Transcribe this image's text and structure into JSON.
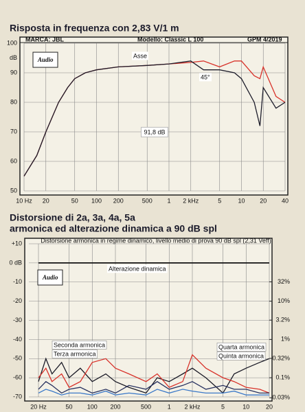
{
  "chart_data": [
    {
      "type": "line",
      "title": "Risposta in frequenza con 2,83 V/1 m",
      "header": [
        "MARCA: JBL",
        "Modello: Classic L 100",
        "GPM 4/2019"
      ],
      "logo": "Audio",
      "ylabel": "dB",
      "annotation": "91,8 dB",
      "xlog": true,
      "grid": true,
      "xlim": [
        10,
        40000
      ],
      "ylim": [
        50,
        100
      ],
      "xticks": [
        {
          "value": 10,
          "label": "10 Hz"
        },
        20,
        50,
        100,
        200,
        500,
        {
          "value": 1000,
          "label": "1"
        },
        {
          "value": 2000,
          "label": "2 kHz"
        },
        {
          "value": 5000,
          "label": "5"
        },
        {
          "value": 10000,
          "label": "10"
        },
        {
          "value": 20000,
          "label": "20"
        },
        {
          "value": 40000,
          "label": "40"
        }
      ],
      "yticks": [
        50,
        60,
        70,
        80,
        90,
        100
      ],
      "x": [
        10,
        15,
        20,
        30,
        40,
        50,
        70,
        100,
        200,
        500,
        1000,
        2000,
        3000,
        5000,
        8000,
        10000,
        15000,
        18000,
        20000,
        30000,
        40000
      ],
      "series": [
        {
          "name": "Asse",
          "color": "#d8322a",
          "values": [
            55,
            62,
            70,
            80,
            85,
            88,
            90,
            91,
            92,
            92.5,
            93,
            93.5,
            94,
            92,
            94,
            94,
            89,
            88,
            92,
            82,
            80
          ]
        },
        {
          "name": "45°",
          "color": "#1c1c2a",
          "values": [
            55,
            62,
            70,
            80,
            85,
            88,
            90,
            91,
            92,
            92.5,
            93,
            94,
            91,
            91,
            90,
            88,
            80,
            72,
            85,
            78,
            80
          ]
        }
      ]
    },
    {
      "type": "line",
      "title": "Distorsione di 2a, 3a, 4a, 5a",
      "subtitle": "armonica ed alterazione dinamica a 90 dB spl",
      "inner_title": "Distorsione armonica in regime dinamico, livello medio di prova 90 dB spl (2,31 Veff)",
      "logo": "Audio",
      "xlog": true,
      "grid": true,
      "y2log": true,
      "xlim": [
        15,
        20000
      ],
      "ylim": [
        -70,
        10
      ],
      "y2lim": [
        0.0316,
        316
      ],
      "xticks": [
        {
          "value": 20,
          "label": "20 Hz"
        },
        50,
        100,
        200,
        500,
        {
          "value": 1000,
          "label": "1"
        },
        {
          "value": 2000,
          "label": "2 kHz"
        },
        {
          "value": 5000,
          "label": "5"
        },
        {
          "value": 10000,
          "label": "10"
        },
        {
          "value": 20000,
          "label": "20"
        }
      ],
      "yticks": [
        {
          "value": 10,
          "label": "+10"
        },
        {
          "value": 0,
          "label": "0 dB"
        },
        -10,
        -20,
        -30,
        -40,
        -50,
        -60,
        -70
      ],
      "y2ticks": [
        {
          "value": 32,
          "label": "32%"
        },
        {
          "value": 10,
          "label": "10%"
        },
        {
          "value": 3.2,
          "label": "3.2%"
        },
        {
          "value": 1,
          "label": "1%"
        },
        {
          "value": 0.32,
          "label": "0.32%"
        },
        {
          "value": 0.1,
          "label": "0.1%"
        },
        {
          "value": 0.03,
          "label": "0.03%"
        }
      ],
      "x": [
        20,
        25,
        30,
        40,
        50,
        70,
        100,
        150,
        200,
        300,
        500,
        700,
        1000,
        1500,
        2000,
        3000,
        5000,
        7000,
        10000,
        15000,
        20000
      ],
      "series": [
        {
          "name": "Alterazione dinamica",
          "color": "#111111",
          "values": [
            0,
            0,
            0,
            0,
            0,
            0,
            0,
            0,
            0,
            0,
            0,
            0,
            0,
            0,
            0,
            0,
            0,
            0,
            0,
            0,
            0
          ]
        },
        {
          "name": "Seconda armonica",
          "color": "#1a1a26",
          "values": [
            -62,
            -50,
            -58,
            -52,
            -60,
            -55,
            -62,
            -58,
            -62,
            -65,
            -68,
            -60,
            -62,
            -58,
            -55,
            -60,
            -68,
            -58,
            -55,
            -52,
            -50
          ]
        },
        {
          "name": "Terza armonica",
          "color": "#d8322a",
          "values": [
            -60,
            -55,
            -62,
            -58,
            -65,
            -62,
            -52,
            -50,
            -55,
            -58,
            -62,
            -58,
            -65,
            -62,
            -48,
            -55,
            -60,
            -62,
            -65,
            -66,
            -68
          ]
        },
        {
          "name": "Quarta armonica",
          "color": "#26305e",
          "values": [
            -66,
            -62,
            -64,
            -68,
            -66,
            -65,
            -68,
            -66,
            -68,
            -64,
            -66,
            -62,
            -66,
            -64,
            -62,
            -66,
            -64,
            -66,
            -66,
            -68,
            -68
          ]
        },
        {
          "name": "Quinta armonica",
          "color": "#3a78c8",
          "values": [
            -68,
            -66,
            -67,
            -69,
            -68,
            -68,
            -69,
            -67,
            -69,
            -68,
            -69,
            -66,
            -68,
            -66,
            -67,
            -68,
            -68,
            -67,
            -69,
            -69,
            -69
          ]
        }
      ]
    }
  ]
}
